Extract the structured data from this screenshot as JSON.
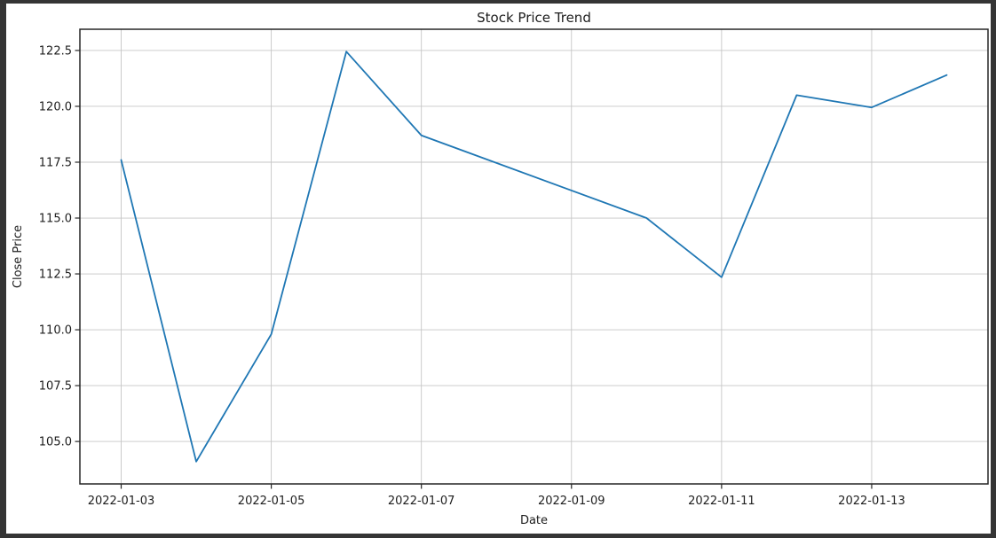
{
  "window": {
    "frame_color": "#353535",
    "figure_background": "#ffffff"
  },
  "chart_data": {
    "type": "line",
    "title": "Stock Price Trend",
    "xlabel": "Date",
    "ylabel": "Close Price",
    "x": [
      "2022-01-03",
      "2022-01-04",
      "2022-01-05",
      "2022-01-06",
      "2022-01-07",
      "2022-01-10",
      "2022-01-11",
      "2022-01-12",
      "2022-01-13",
      "2022-01-14"
    ],
    "series": [
      {
        "name": "Close Price",
        "values": [
          117.6,
          104.1,
          109.8,
          122.45,
          118.7,
          115.0,
          112.35,
          120.5,
          119.95,
          121.4
        ]
      }
    ],
    "xticks": [
      "2022-01-03",
      "2022-01-05",
      "2022-01-07",
      "2022-01-09",
      "2022-01-11",
      "2022-01-13"
    ],
    "yticks": [
      105.0,
      107.5,
      110.0,
      112.5,
      115.0,
      117.5,
      120.0,
      122.5
    ],
    "ytick_labels": [
      "105.0",
      "107.5",
      "110.0",
      "112.5",
      "115.0",
      "117.5",
      "120.0",
      "122.5"
    ],
    "ylim": [
      103.1,
      123.45
    ],
    "xlim_days": [
      -0.55,
      11.55
    ],
    "grid": true,
    "legend_position": "none",
    "line_color": "#1f77b4",
    "grid_color": "#c6c6c6",
    "spine_color": "#262626",
    "tick_color": "#262626",
    "text_color": "#1d1d1d"
  }
}
